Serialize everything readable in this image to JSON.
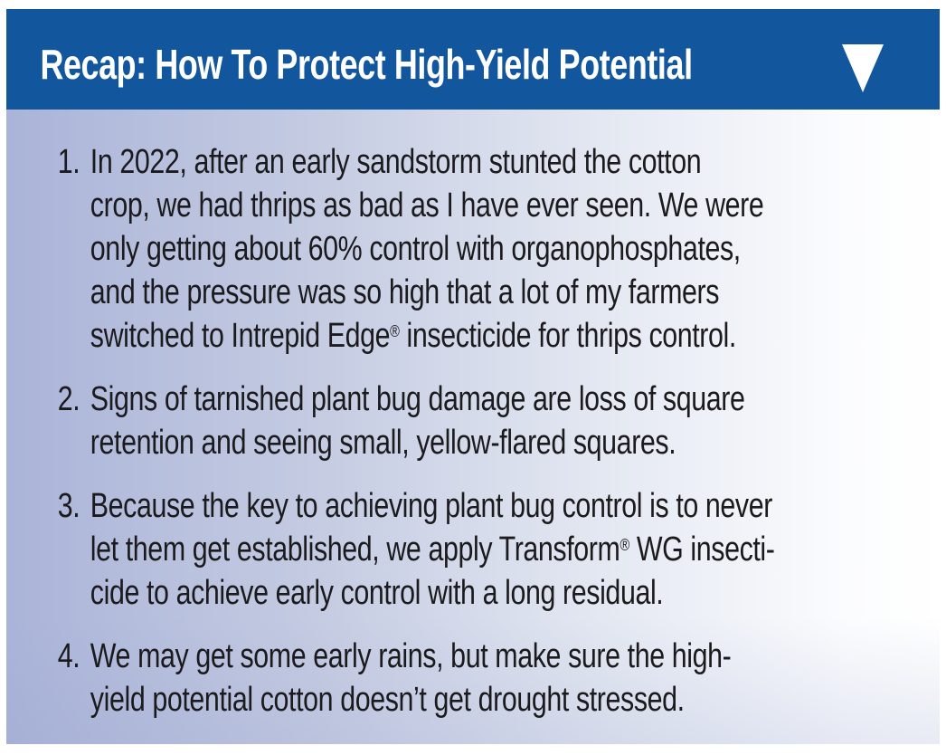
{
  "header": {
    "title": "Recap: How To Protect High-Yield Potential",
    "triangle_icon": "triangle-down",
    "bg_color": "#12569E",
    "text_color": "#FFFFFF"
  },
  "colors": {
    "page_bg": "#FFFFFF",
    "body_gradient_left": "#AAB4D8",
    "body_gradient_right": "#FFFFFF",
    "body_text": "#1B1B1D",
    "triangle": "#FFFFFF"
  },
  "list": {
    "items": [
      {
        "number": "1.",
        "lines": [
          "In 2022, after an early sandstorm stunted the cotton",
          "crop, we had thrips as bad as I have ever seen. We were",
          "only getting about 60% control with organophosphates,",
          "and the pressure was so high that a lot of my farmers",
          "switched to Intrepid Edge® insecticide for thrips control."
        ]
      },
      {
        "number": "2.",
        "lines": [
          "Signs of tarnished plant bug damage are loss of square",
          "retention and seeing small, yellow-flared squares."
        ]
      },
      {
        "number": "3.",
        "lines": [
          "Because the key to achieving plant bug control is to never",
          "let them get established, we apply Transform® WG insecti-",
          "cide to achieve early control with a long residual."
        ]
      },
      {
        "number": "4.",
        "lines": [
          "We may get some early rains, but make sure the high-",
          "yield potential cotton doesn’t get drought stressed."
        ]
      }
    ]
  }
}
